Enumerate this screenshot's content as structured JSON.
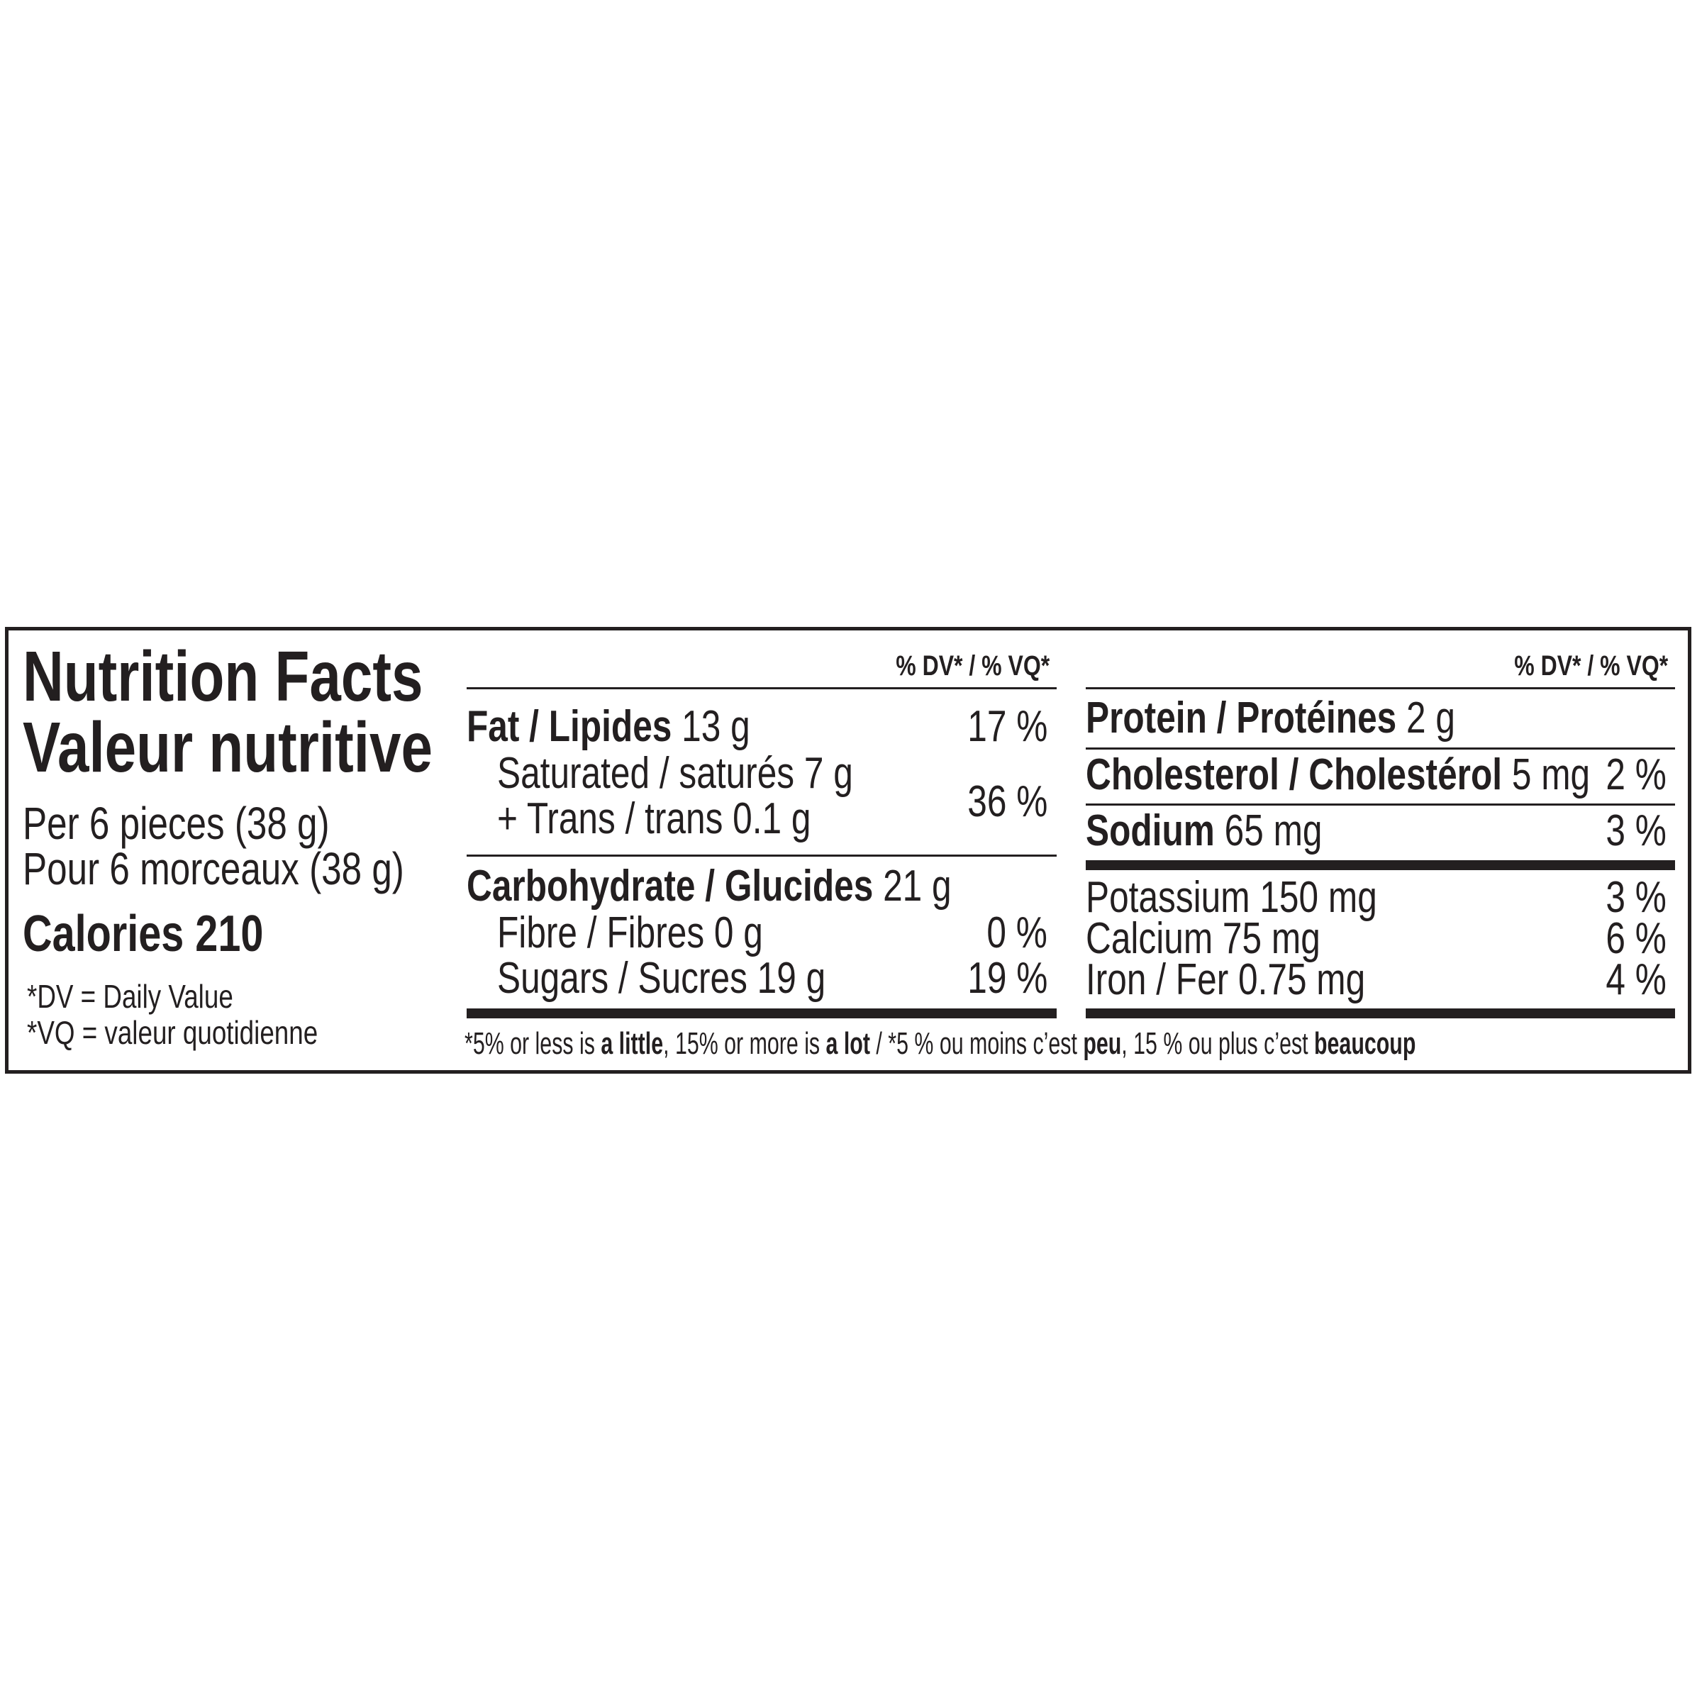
{
  "title_en": "Nutrition Facts",
  "title_fr": "Valeur nutritive",
  "serving_en": "Per 6 pieces (38 g)",
  "serving_fr": "Pour 6 morceaux (38 g)",
  "calories": "Calories 210",
  "dv_note_en": "*DV = Daily Value",
  "dv_note_fr": "*VQ = valeur quotidienne",
  "dv_header": "% DV* / % VQ*",
  "left_rows": {
    "fat": {
      "label": "Fat / Lipides",
      "amount": " 13 g",
      "dv": "17 %"
    },
    "saturated": {
      "label": "Saturated / saturés 7 g"
    },
    "trans": {
      "label": "+ Trans / trans 0.1 g"
    },
    "sat_trans_dv": "36 %",
    "carb": {
      "label": "Carbohydrate / Glucides",
      "amount": " 21 g"
    },
    "fibre": {
      "label": "Fibre / Fibres 0 g",
      "dv": "0 %"
    },
    "sugars": {
      "label": "Sugars / Sucres 19 g",
      "dv": "19 %"
    }
  },
  "right_rows": {
    "protein": {
      "label": "Protein / Protéines",
      "amount": " 2 g"
    },
    "cholesterol": {
      "label": "Cholesterol / Cholestérol",
      "amount": " 5 mg",
      "dv": "2 %"
    },
    "sodium": {
      "label": "Sodium",
      "amount": " 65 mg",
      "dv": "3 %"
    },
    "potassium": {
      "label": "Potassium 150 mg",
      "dv": "3 %"
    },
    "calcium": {
      "label": "Calcium 75 mg",
      "dv": "6 %"
    },
    "iron": {
      "label": "Iron / Fer 0.75 mg",
      "dv": "4 %"
    }
  },
  "footnote": {
    "p1": "*5% or less is ",
    "b1": "a little",
    "p2": ", 15% or more is ",
    "b2": "a lot",
    "p3": " / *5 % ou moins c’est ",
    "b3": "peu",
    "p4": ", 15 % ou plus c’est ",
    "b4": "beaucoup"
  }
}
